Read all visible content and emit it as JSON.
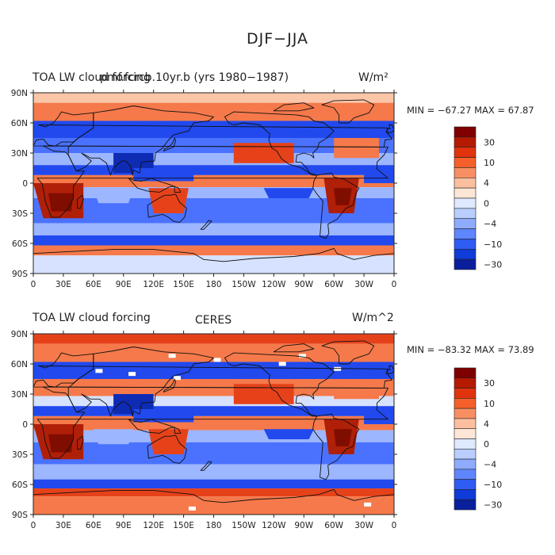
{
  "figure": {
    "title": "DJF−JJA"
  },
  "panels": [
    {
      "left_title": "TOA LW cloud forcing",
      "center_title": "pmf.fcrcb.10yr.b (yrs 1980−1987)",
      "units": "W/m²",
      "stats": "MIN = −67.27  MAX =  67.87"
    },
    {
      "left_title": "TOA LW cloud forcing",
      "center_title": "CERES",
      "units": "W/m^2",
      "stats": "MIN = −83.32  MAX =  73.89"
    }
  ],
  "axes": {
    "lat_labels": [
      "90N",
      "60N",
      "30N",
      "0",
      "30S",
      "60S",
      "90S"
    ],
    "lon_labels": [
      "0",
      "30E",
      "60E",
      "90E",
      "120E",
      "150E",
      "180",
      "150W",
      "120W",
      "90W",
      "60W",
      "30W",
      "0"
    ]
  },
  "colorbar": {
    "labels": [
      "30",
      "10",
      "4",
      "0",
      "−4",
      "−10",
      "−30"
    ],
    "colors": [
      "#7f0000",
      "#b51a00",
      "#e0330e",
      "#f5602a",
      "#f88f62",
      "#fbbf9f",
      "#fde6d6",
      "#dfe9ff",
      "#b9cdff",
      "#8eabff",
      "#5f85ff",
      "#2f5cf2",
      "#0f3bd8",
      "#0a1f9c"
    ]
  },
  "palette": {
    "deep_blue": "#0e2bb4",
    "blue": "#2149ee",
    "mid_blue": "#4a72ff",
    "light_blue": "#9cb6ff",
    "pale_blue": "#d6e2ff",
    "white": "#fbf6f2",
    "pale_red": "#fbc5a8",
    "light_red": "#f5794a",
    "red": "#e6421a",
    "dark_red": "#b01f08",
    "deep_red": "#7f0d00",
    "coast": "#111111"
  }
}
